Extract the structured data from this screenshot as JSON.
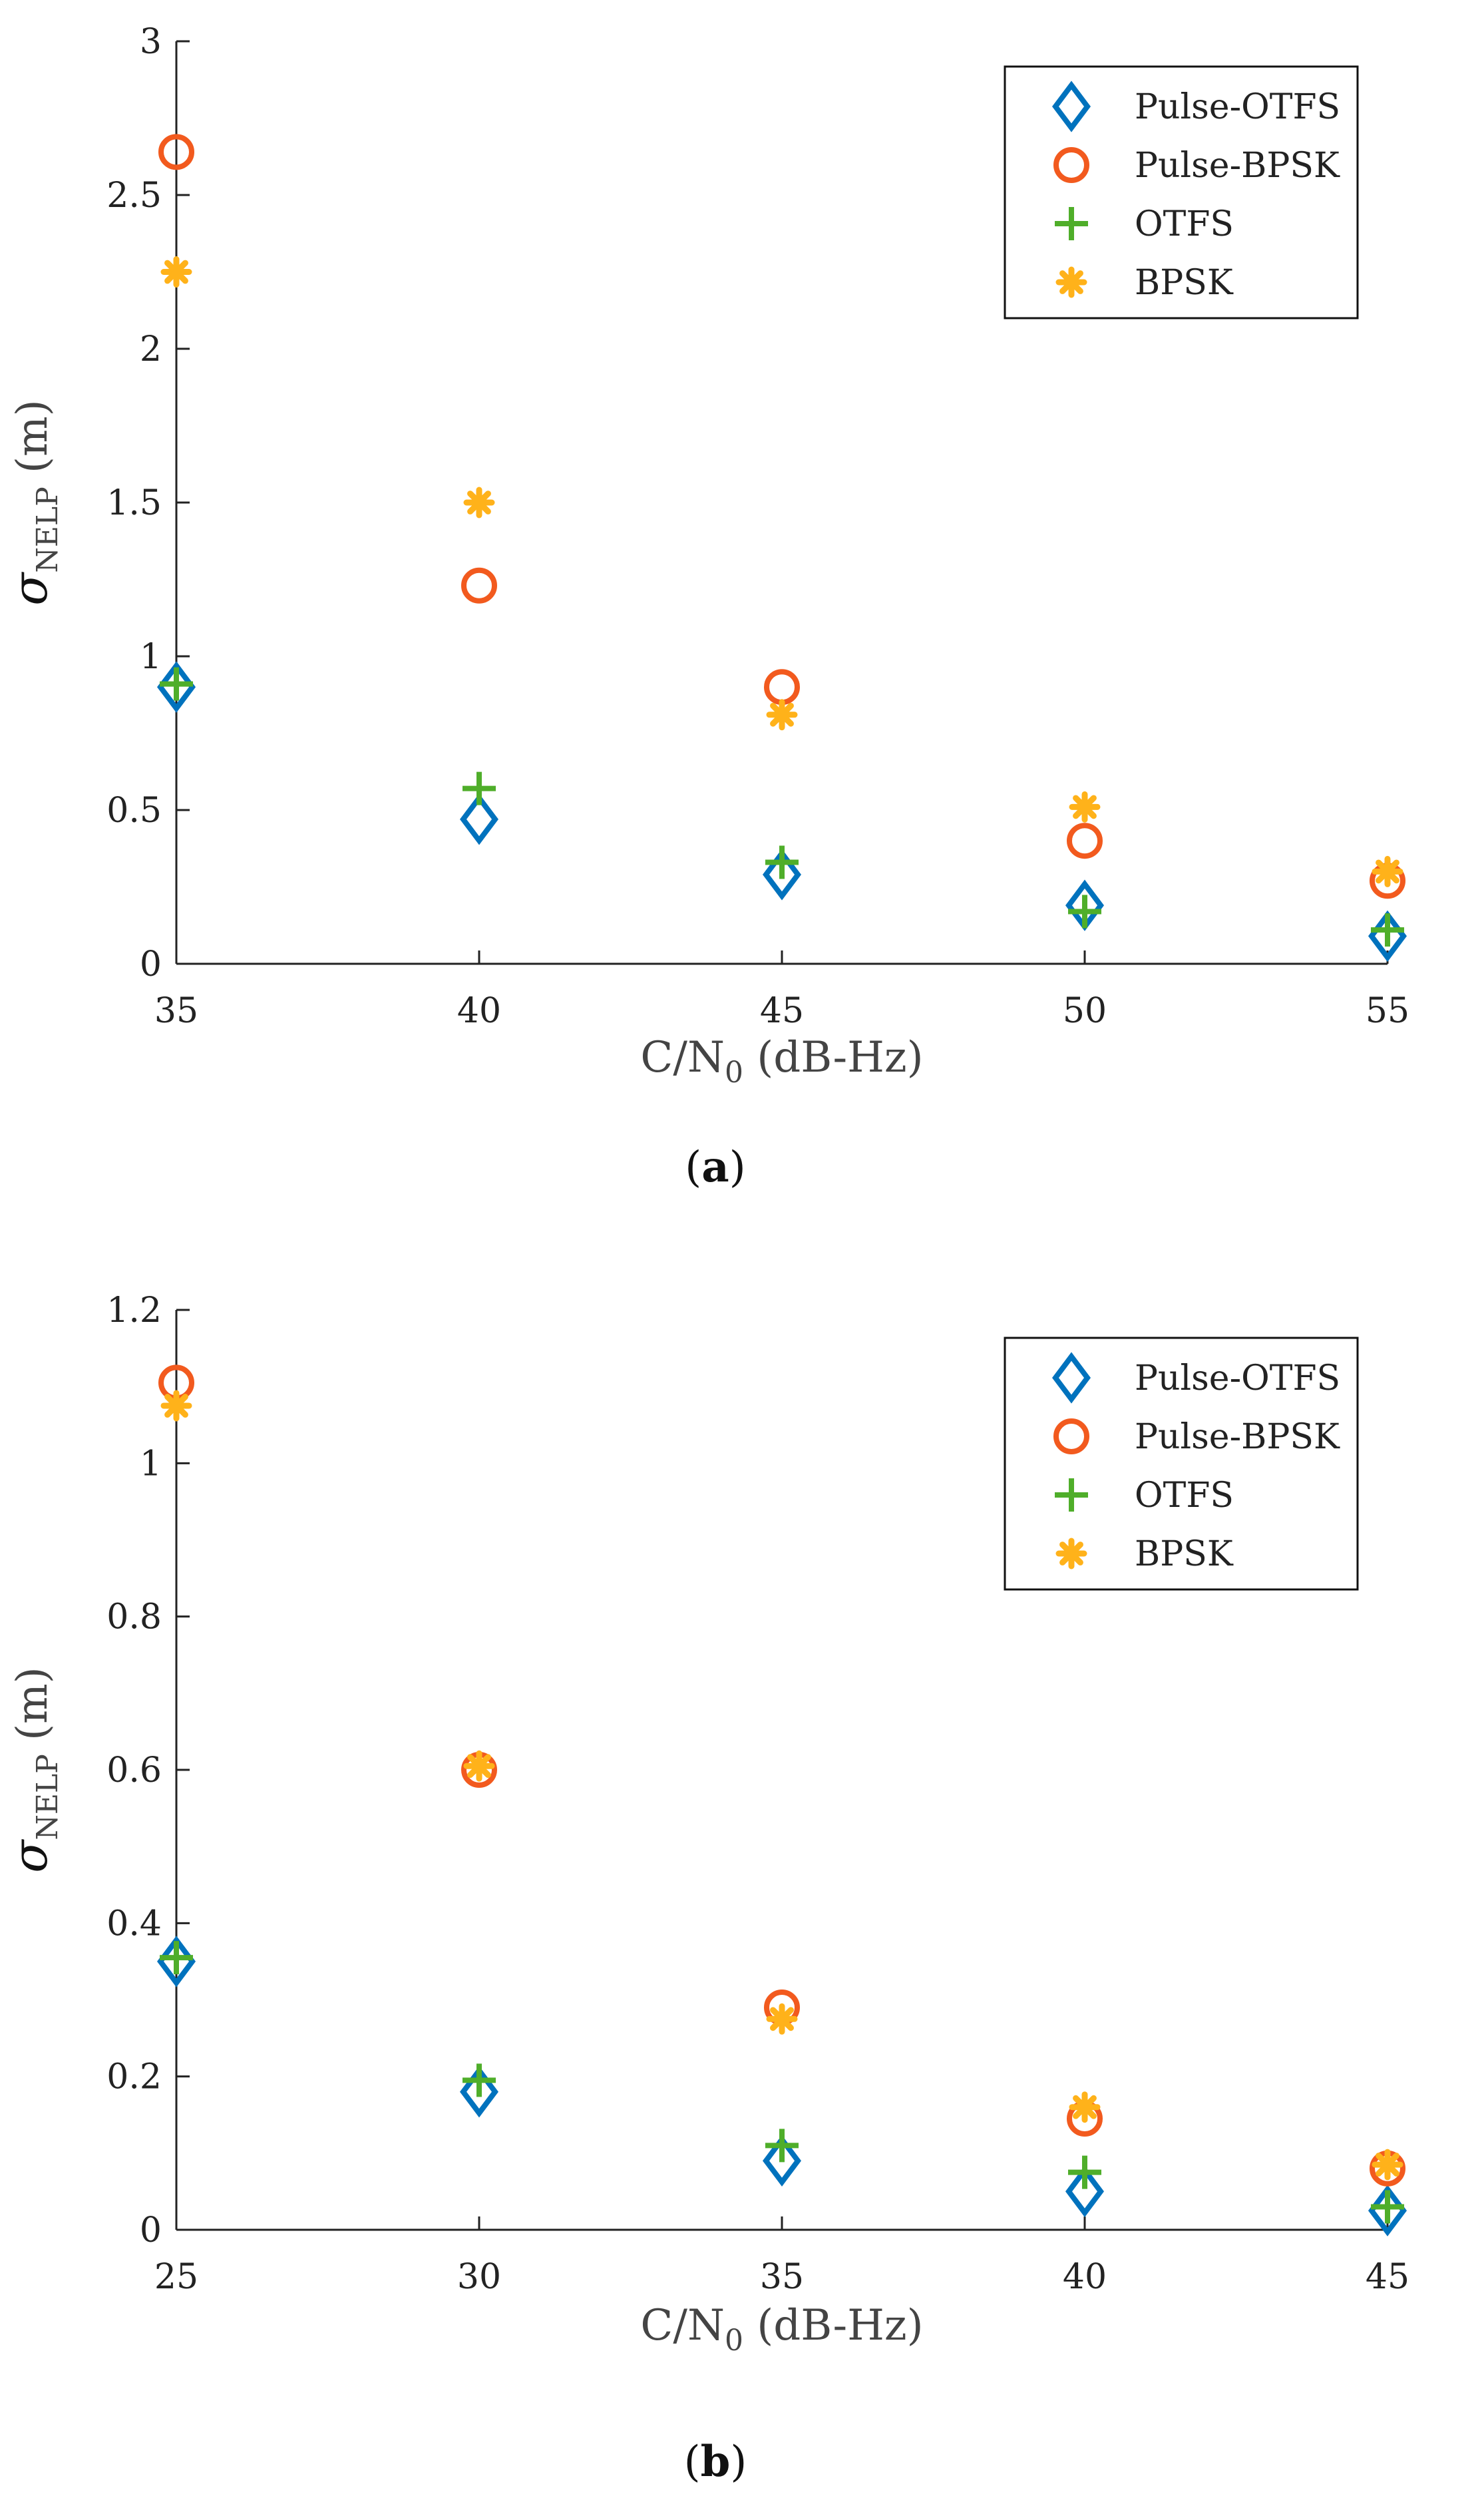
{
  "colors": {
    "pulse_otfs": "#0072BD",
    "pulse_bpsk": "#F25A1E",
    "otfs": "#4FAE2A",
    "bpsk": "#FFB21A",
    "axis": "#222222"
  },
  "chart_data": [
    {
      "type": "scatter",
      "panel": "a",
      "caption": {
        "open": "(",
        "letter": "a",
        "close": ")"
      },
      "xlabel": {
        "base": "C/N",
        "sub": "0",
        "rest": " (dB-Hz)"
      },
      "ylabel": {
        "sym": "σ",
        "sub": "NELP",
        "rest": " (m)"
      },
      "xlim": [
        35,
        55
      ],
      "ylim": [
        0,
        3
      ],
      "xticks": [
        35,
        40,
        45,
        50,
        55
      ],
      "yticks": [
        0,
        0.5,
        1,
        1.5,
        2,
        2.5,
        3
      ],
      "ytick_labels": [
        "0",
        "0.5",
        "1",
        "1.5",
        "2",
        "2.5",
        "3"
      ],
      "legend_position": "top-right",
      "x": [
        35,
        40,
        45,
        50,
        55
      ],
      "series": [
        {
          "name": "Pulse-OTFS",
          "marker": "diamond",
          "color_key": "pulse_otfs",
          "values": [
            0.9,
            0.47,
            0.29,
            0.19,
            0.09
          ]
        },
        {
          "name": "Pulse-BPSK",
          "marker": "circle",
          "color_key": "pulse_bpsk",
          "values": [
            2.64,
            1.23,
            0.9,
            0.4,
            0.27
          ]
        },
        {
          "name": "OTFS",
          "marker": "plus",
          "color_key": "otfs",
          "values": [
            0.91,
            0.57,
            0.33,
            0.17,
            0.11
          ]
        },
        {
          "name": "BPSK",
          "marker": "asterisk",
          "color_key": "bpsk",
          "values": [
            2.25,
            1.5,
            0.81,
            0.51,
            0.3
          ]
        }
      ]
    },
    {
      "type": "scatter",
      "panel": "b",
      "caption": {
        "open": "(",
        "letter": "b",
        "close": ")"
      },
      "xlabel": {
        "base": "C/N",
        "sub": "0",
        "rest": " (dB-Hz)"
      },
      "ylabel": {
        "sym": "σ",
        "sub": "NELP",
        "rest": " (m)"
      },
      "xlim": [
        25,
        45
      ],
      "ylim": [
        0,
        1.2
      ],
      "xticks": [
        25,
        30,
        35,
        40,
        45
      ],
      "yticks": [
        0,
        0.2,
        0.4,
        0.6,
        0.8,
        1,
        1.2
      ],
      "ytick_labels": [
        "0",
        "0.2",
        "0.4",
        "0.6",
        "0.8",
        "1",
        "1.2"
      ],
      "legend_position": "top-right",
      "x": [
        25,
        30,
        35,
        40,
        45
      ],
      "series": [
        {
          "name": "Pulse-OTFS",
          "marker": "diamond",
          "color_key": "pulse_otfs",
          "values": [
            0.35,
            0.18,
            0.09,
            0.05,
            0.025
          ]
        },
        {
          "name": "Pulse-BPSK",
          "marker": "circle",
          "color_key": "pulse_bpsk",
          "values": [
            1.105,
            0.6,
            0.29,
            0.145,
            0.08
          ]
        },
        {
          "name": "OTFS",
          "marker": "plus",
          "color_key": "otfs",
          "values": [
            0.355,
            0.195,
            0.11,
            0.075,
            0.03
          ]
        },
        {
          "name": "BPSK",
          "marker": "asterisk",
          "color_key": "bpsk",
          "values": [
            1.075,
            0.605,
            0.275,
            0.16,
            0.085
          ]
        }
      ]
    }
  ]
}
